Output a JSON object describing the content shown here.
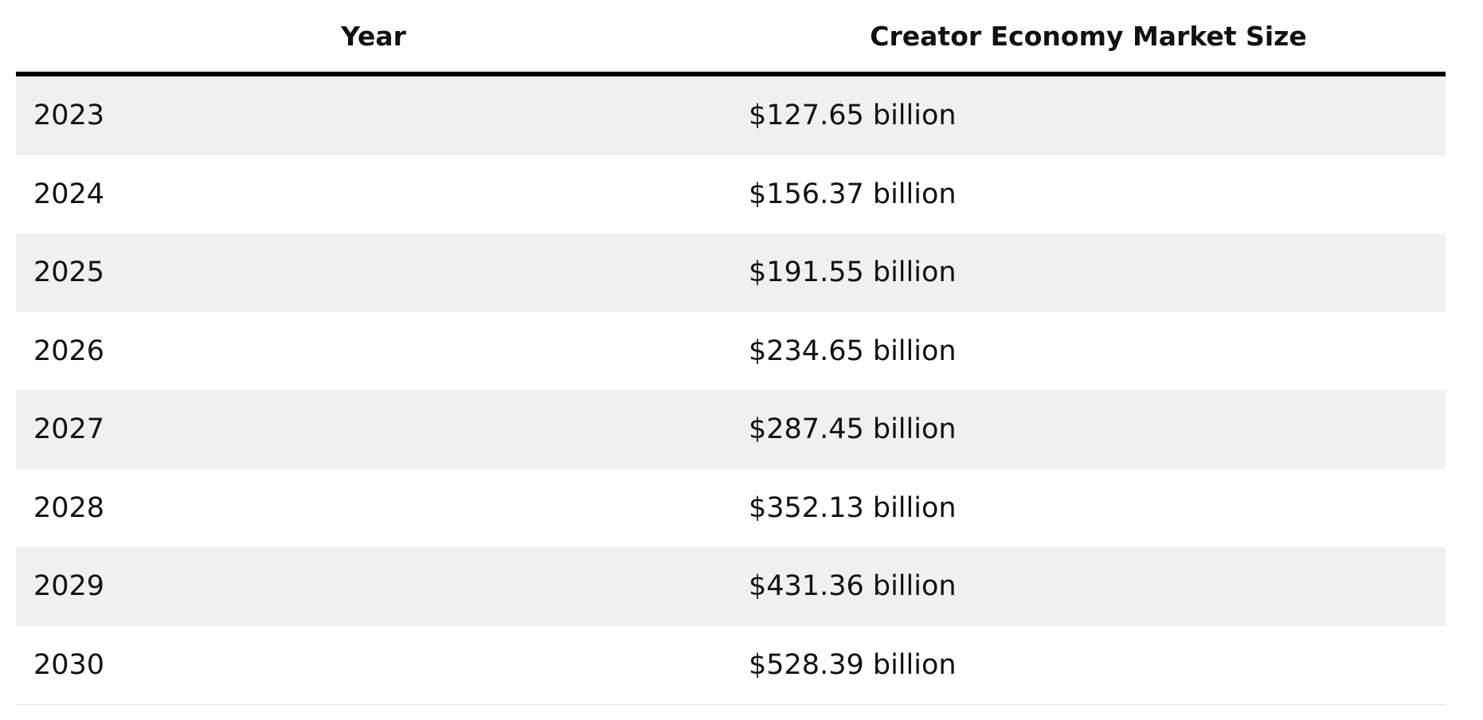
{
  "table": {
    "columns": [
      "Year",
      "Creator Economy Market Size"
    ],
    "rows": [
      [
        "2023",
        "$127.65 billion"
      ],
      [
        "2024",
        "$156.37 billion"
      ],
      [
        "2025",
        "$191.55 billion"
      ],
      [
        "2026",
        "$234.65 billion"
      ],
      [
        "2027",
        "$287.45 billion"
      ],
      [
        "2028",
        "$352.13 billion"
      ],
      [
        "2029",
        "$431.36 billion"
      ],
      [
        "2030",
        "$528.39 billion"
      ]
    ]
  }
}
